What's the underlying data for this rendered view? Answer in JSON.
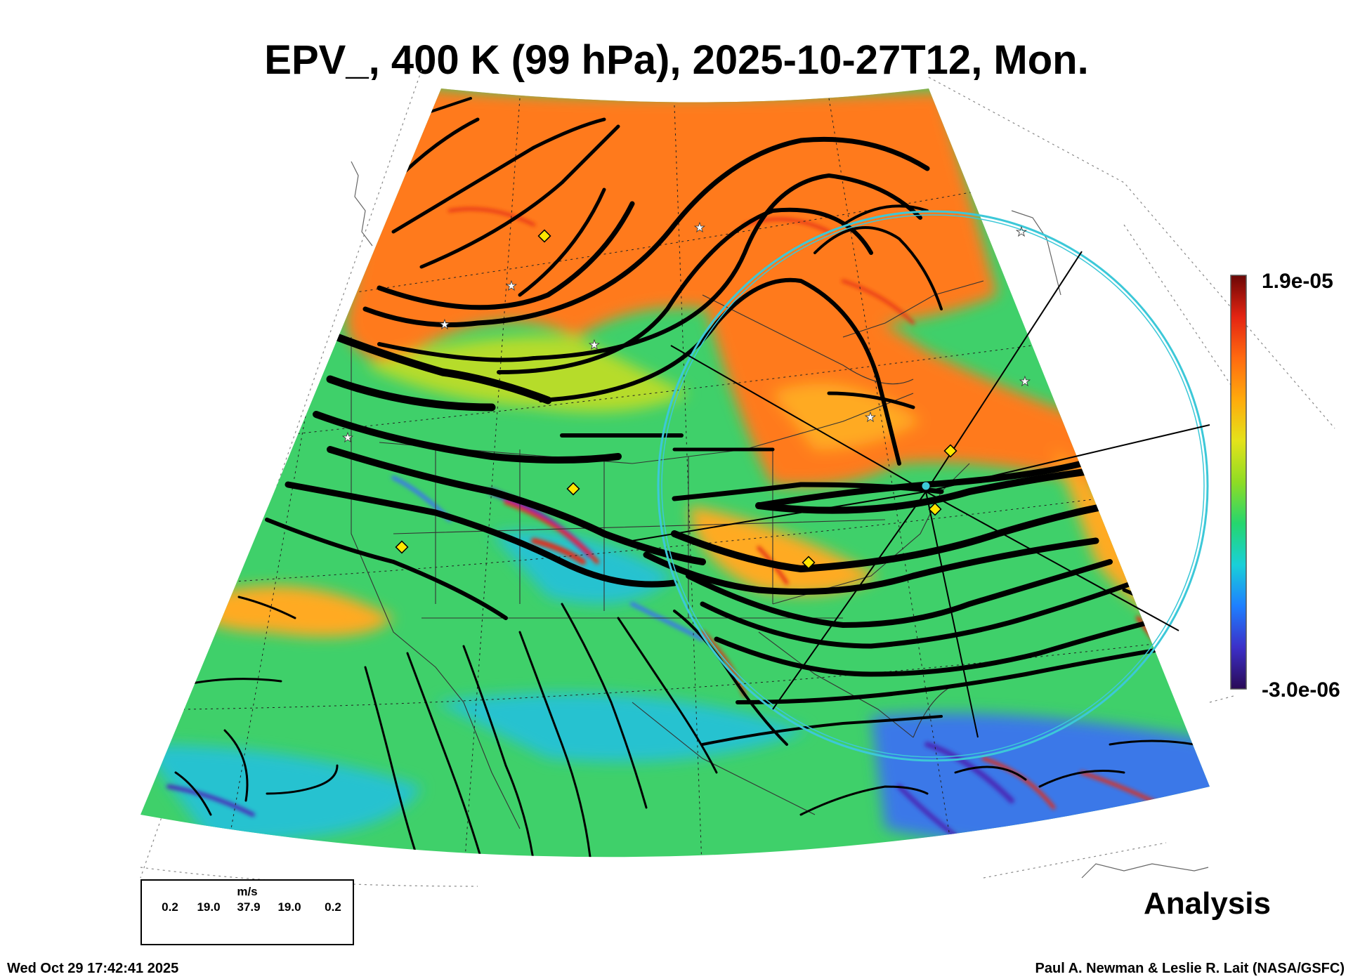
{
  "title": "EPV_, 400 K (99 hPa), 2025-10-27T12, Mon.",
  "colorbar": {
    "max_label": "1.9e-05",
    "min_label": "-3.0e-06",
    "colors": [
      "#2a0a55",
      "#3c2fc8",
      "#1e7fff",
      "#19d0d8",
      "#25d66e",
      "#8fdc24",
      "#e4e21a",
      "#ffaa0c",
      "#ff6a10",
      "#e42412",
      "#6b0606"
    ]
  },
  "field_colors": {
    "high": "#ff7a1c",
    "mid": "#ffaa22",
    "yellowgreen": "#b6dc2a",
    "green": "#3fd06a",
    "cyan": "#25c2d0",
    "blue": "#3a78e8",
    "red": "#e42a14",
    "purple": "#4a2ab8"
  },
  "wind_legend": {
    "unit": "m/s",
    "values": [
      "0.2",
      "19.0",
      "37.9",
      "19.0",
      "0.2"
    ]
  },
  "label_analysis": "Analysis",
  "footer": {
    "timestamp": "Wed Oct 29 17:42:41 2025",
    "credit": "Paul A. Newman & Leslie R. Lait (NASA/GSFC)"
  },
  "markers": {
    "diamond_color": "#ffe600",
    "star_color": "#ffffff",
    "circle_color": "#3cc8d8"
  }
}
